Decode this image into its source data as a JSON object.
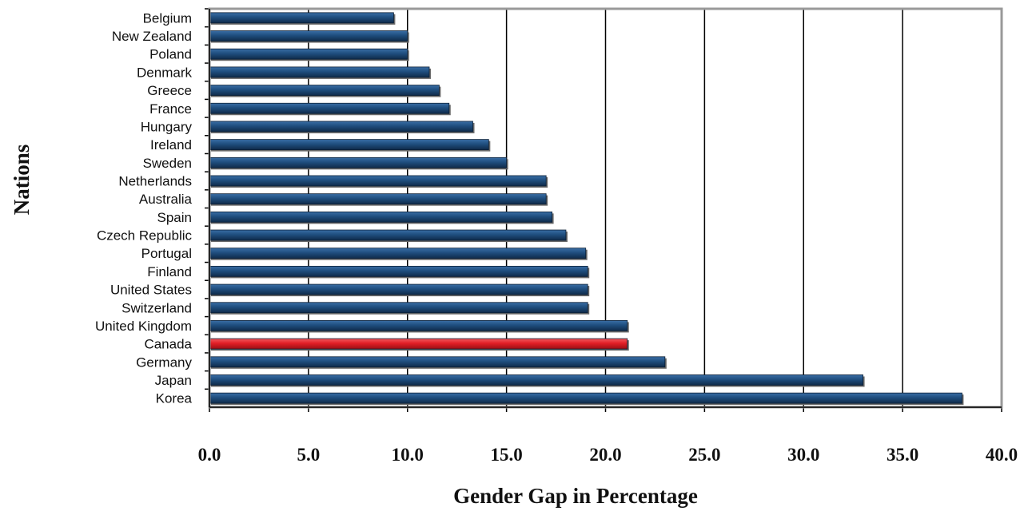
{
  "chart_data": {
    "type": "bar",
    "orientation": "horizontal",
    "categories": [
      "Belgium",
      "New Zealand",
      "Poland",
      "Denmark",
      "Greece",
      "France",
      "Hungary",
      "Ireland",
      "Sweden",
      "Netherlands",
      "Australia",
      "Spain",
      "Czech Republic",
      "Portugal",
      "Finland",
      "United States",
      "Switzerland",
      "United Kingdom",
      "Canada",
      "Germany",
      "Japan",
      "Korea"
    ],
    "values": [
      9.3,
      10.0,
      10.0,
      11.1,
      11.6,
      12.1,
      13.3,
      14.1,
      15.0,
      17.0,
      17.0,
      17.3,
      18.0,
      19.0,
      19.1,
      19.1,
      19.1,
      21.1,
      21.1,
      23.0,
      33.0,
      38.0
    ],
    "highlight": "Canada",
    "xlabel": "Gender Gap in Percentage",
    "ylabel": "Nations",
    "xlim": [
      0,
      40
    ],
    "xticks": [
      "0.0",
      "5.0",
      "10.0",
      "15.0",
      "20.0",
      "25.0",
      "30.0",
      "35.0",
      "40.0"
    ],
    "grid": "vertical",
    "legend": "none",
    "colors": {
      "bar": "#1f4e7e",
      "highlight_bar": "#e21e26",
      "grid": "#000000",
      "frame": "#999999"
    }
  }
}
